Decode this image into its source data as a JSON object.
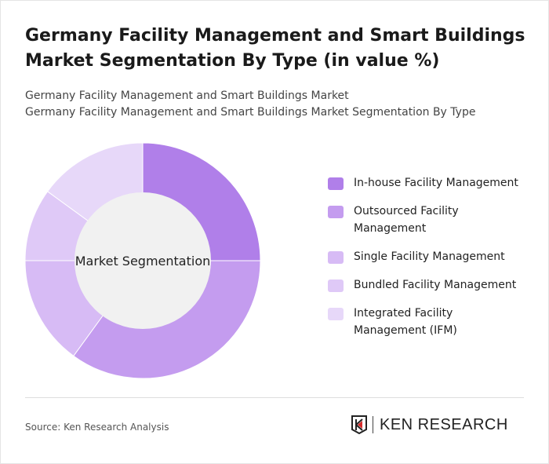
{
  "title": "Germany Facility Management and Smart Buildings Market Segmentation By Type (in value %)",
  "subtitle_1": "Germany Facility Management and Smart Buildings Market",
  "subtitle_2": "Germany Facility Management and Smart Buildings Market Segmentation By Type",
  "chart_data": {
    "type": "pie",
    "variant": "donut",
    "center_label": "Market Segmentation",
    "categories": [
      "In-house Facility Management",
      "Outsourced Facility Management",
      "Single Facility Management",
      "Bundled Facility Management",
      "Integrated Facility Management (IFM)"
    ],
    "values": [
      25,
      35,
      15,
      10,
      15
    ],
    "colors": [
      "#b07fe9",
      "#c49cef",
      "#d7bbf5",
      "#dfc9f7",
      "#e7d8f9"
    ],
    "legend_position": "right"
  },
  "source": "Source: Ken Research Analysis",
  "logo_text": "KEN RESEARCH"
}
